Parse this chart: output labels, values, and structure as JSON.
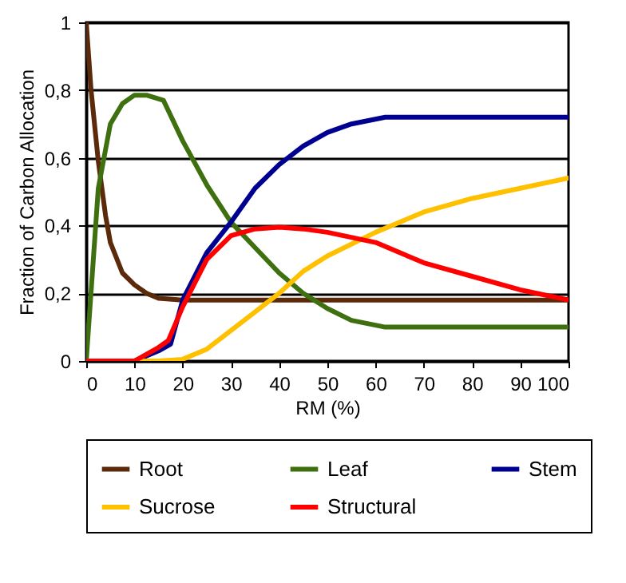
{
  "chart_data": {
    "type": "line",
    "xlabel": "RM (%)",
    "ylabel": "Fraction of Carbon Allocation",
    "xlim": [
      0,
      100
    ],
    "xticks": [
      0,
      10,
      20,
      30,
      40,
      50,
      60,
      70,
      80,
      90,
      100
    ],
    "ylim": [
      0,
      1
    ],
    "yticks": [
      0,
      {
        "value": 0.2,
        "label": "0,2"
      },
      {
        "value": 0.4,
        "label": "0,4"
      },
      {
        "value": 0.6,
        "label": "0,6"
      },
      {
        "value": 0.8,
        "label": "0,8"
      },
      1
    ],
    "grid": "y",
    "legend": "bottom",
    "marker": "none",
    "line_style": "solid",
    "series": [
      {
        "name": "Root",
        "color": "#5a2a0a",
        "x": [
          0,
          1,
          2.5,
          4,
          5,
          7.5,
          10,
          12.5,
          15,
          20,
          30,
          50,
          100
        ],
        "values": [
          1,
          0.8,
          0.59,
          0.43,
          0.35,
          0.26,
          0.225,
          0.2,
          0.185,
          0.18,
          0.18,
          0.18,
          0.18
        ]
      },
      {
        "name": "Leaf",
        "color": "#3f7010",
        "x": [
          0,
          2.5,
          5,
          7.5,
          10,
          12.5,
          16,
          20,
          25,
          30,
          35,
          40,
          45,
          50,
          55,
          62,
          100
        ],
        "values": [
          0,
          0.51,
          0.7,
          0.76,
          0.785,
          0.785,
          0.77,
          0.65,
          0.52,
          0.41,
          0.335,
          0.26,
          0.2,
          0.155,
          0.12,
          0.1,
          0.1
        ]
      },
      {
        "name": "Stem",
        "color": "#000090",
        "x": [
          0,
          10,
          15,
          17.5,
          20,
          25,
          30,
          35,
          40,
          45,
          50,
          55,
          62,
          100
        ],
        "values": [
          0,
          0,
          0.03,
          0.05,
          0.18,
          0.32,
          0.41,
          0.51,
          0.58,
          0.635,
          0.675,
          0.7,
          0.72,
          0.72
        ]
      },
      {
        "name": "Sucrose",
        "color": "#ffc000",
        "x": [
          0,
          15,
          20,
          25,
          30,
          35,
          40,
          45,
          50,
          60,
          70,
          80,
          90,
          100
        ],
        "values": [
          0,
          0,
          0.005,
          0.035,
          0.09,
          0.145,
          0.2,
          0.265,
          0.31,
          0.38,
          0.44,
          0.48,
          0.51,
          0.54
        ]
      },
      {
        "name": "Structural",
        "color": "#ff0000",
        "x": [
          0,
          10,
          15,
          17,
          20,
          25,
          30,
          35,
          40,
          45,
          50,
          60,
          70,
          80,
          90,
          100
        ],
        "values": [
          0,
          0,
          0.04,
          0.06,
          0.16,
          0.3,
          0.37,
          0.39,
          0.395,
          0.39,
          0.38,
          0.35,
          0.29,
          0.25,
          0.21,
          0.18
        ]
      }
    ]
  }
}
